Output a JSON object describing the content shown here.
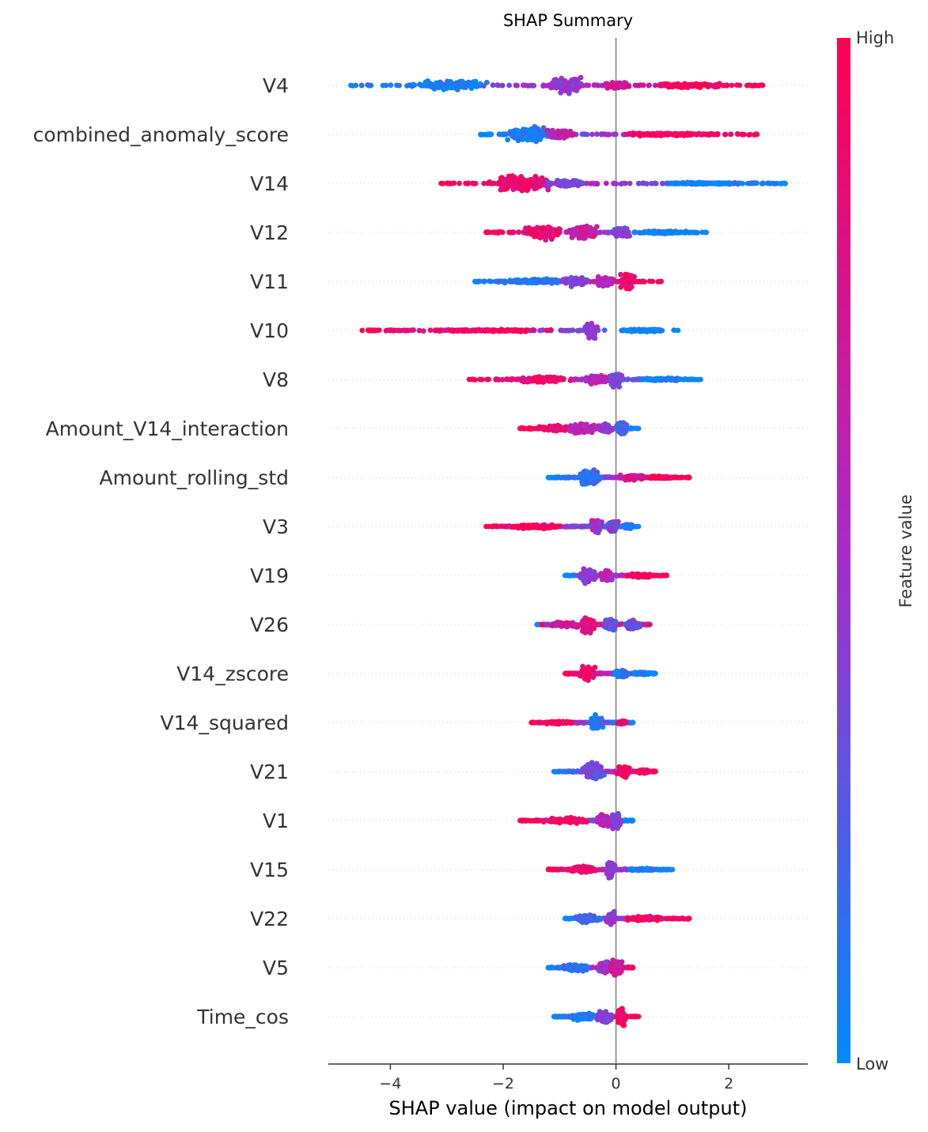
{
  "chart_data": {
    "type": "scatter",
    "subtype": "shap-beeswarm",
    "title": "SHAP Summary",
    "xlabel": "SHAP value (impact on model output)",
    "ylabel": "",
    "xlim": [
      -5.1,
      3.4
    ],
    "xticks": [
      -4,
      -2,
      0,
      2
    ],
    "xtick_labels": [
      "−4",
      "−2",
      "0",
      "2"
    ],
    "zero_line": 0,
    "colorbar": {
      "label": "Feature value",
      "high_label": "High",
      "low_label": "Low",
      "low_color": "#008afb",
      "high_color": "#ff0052"
    },
    "features": [
      {
        "name": "V4",
        "min": -4.7,
        "max": 2.6,
        "mode": "neg_low",
        "clusters": [
          {
            "x": -2.9,
            "w": 0.8,
            "h": 0.25,
            "f": 0.05
          },
          {
            "x": -0.9,
            "w": 0.4,
            "h": 0.45,
            "f": 0.45
          },
          {
            "x": 0.0,
            "w": 0.3,
            "h": 0.2,
            "f": 0.75
          },
          {
            "x": 1.3,
            "w": 0.9,
            "h": 0.12,
            "f": 0.95
          }
        ]
      },
      {
        "name": "combined_anomaly_score",
        "min": -2.4,
        "max": 2.5,
        "mode": "neg_low",
        "clusters": [
          {
            "x": -1.5,
            "w": 0.5,
            "h": 0.4,
            "f": 0.08
          },
          {
            "x": -1.0,
            "w": 0.3,
            "h": 0.25,
            "f": 0.6
          },
          {
            "x": 1.0,
            "w": 1.1,
            "h": 0.08,
            "f": 0.97
          }
        ]
      },
      {
        "name": "V14",
        "min": -3.1,
        "max": 3.0,
        "mode": "neg_high",
        "clusters": [
          {
            "x": -1.7,
            "w": 0.6,
            "h": 0.45,
            "f": 0.9
          },
          {
            "x": -0.9,
            "w": 0.4,
            "h": 0.2,
            "f": 0.4
          },
          {
            "x": 1.6,
            "w": 1.0,
            "h": 0.06,
            "f": 0.05
          }
        ]
      },
      {
        "name": "V12",
        "min": -2.3,
        "max": 1.6,
        "mode": "neg_high",
        "clusters": [
          {
            "x": -1.3,
            "w": 0.4,
            "h": 0.4,
            "f": 0.9
          },
          {
            "x": -0.6,
            "w": 0.3,
            "h": 0.35,
            "f": 0.65
          },
          {
            "x": 0.1,
            "w": 0.2,
            "h": 0.3,
            "f": 0.35
          },
          {
            "x": 0.8,
            "w": 0.5,
            "h": 0.08,
            "f": 0.05
          }
        ]
      },
      {
        "name": "V11",
        "min": -2.5,
        "max": 0.8,
        "mode": "neg_low",
        "clusters": [
          {
            "x": -1.4,
            "w": 0.7,
            "h": 0.15,
            "f": 0.1
          },
          {
            "x": -0.7,
            "w": 0.3,
            "h": 0.25,
            "f": 0.4
          },
          {
            "x": -0.2,
            "w": 0.2,
            "h": 0.3,
            "f": 0.6
          },
          {
            "x": 0.2,
            "w": 0.15,
            "h": 0.45,
            "f": 0.92
          }
        ]
      },
      {
        "name": "V10",
        "min": -4.5,
        "max": 1.1,
        "mode": "neg_high",
        "clusters": [
          {
            "x": -2.2,
            "w": 1.4,
            "h": 0.06,
            "f": 0.95
          },
          {
            "x": -0.45,
            "w": 0.15,
            "h": 0.4,
            "f": 0.45
          },
          {
            "x": 0.5,
            "w": 0.4,
            "h": 0.07,
            "f": 0.05
          }
        ]
      },
      {
        "name": "V8",
        "min": -2.6,
        "max": 1.5,
        "mode": "neg_high",
        "clusters": [
          {
            "x": -1.3,
            "w": 0.6,
            "h": 0.18,
            "f": 0.9
          },
          {
            "x": -0.3,
            "w": 0.3,
            "h": 0.25,
            "f": 0.6
          },
          {
            "x": 0.0,
            "w": 0.15,
            "h": 0.4,
            "f": 0.35
          },
          {
            "x": 0.8,
            "w": 0.5,
            "h": 0.08,
            "f": 0.05
          }
        ]
      },
      {
        "name": "Amount_V14_interaction",
        "min": -1.7,
        "max": 0.4,
        "mode": "neg_high",
        "clusters": [
          {
            "x": -1.1,
            "w": 0.35,
            "h": 0.15,
            "f": 0.9
          },
          {
            "x": -0.6,
            "w": 0.3,
            "h": 0.3,
            "f": 0.6
          },
          {
            "x": -0.2,
            "w": 0.15,
            "h": 0.25,
            "f": 0.45
          },
          {
            "x": 0.1,
            "w": 0.1,
            "h": 0.4,
            "f": 0.2
          }
        ]
      },
      {
        "name": "Amount_rolling_std",
        "min": -1.2,
        "max": 1.3,
        "mode": "neg_low",
        "clusters": [
          {
            "x": -0.45,
            "w": 0.25,
            "h": 0.45,
            "f": 0.15
          },
          {
            "x": 0.3,
            "w": 0.3,
            "h": 0.15,
            "f": 0.75
          },
          {
            "x": 0.8,
            "w": 0.3,
            "h": 0.07,
            "f": 0.97
          }
        ]
      },
      {
        "name": "V3",
        "min": -2.3,
        "max": 0.4,
        "mode": "neg_high",
        "clusters": [
          {
            "x": -1.4,
            "w": 0.6,
            "h": 0.12,
            "f": 0.97
          },
          {
            "x": -0.35,
            "w": 0.12,
            "h": 0.35,
            "f": 0.5
          },
          {
            "x": -0.05,
            "w": 0.1,
            "h": 0.4,
            "f": 0.35
          },
          {
            "x": 0.2,
            "w": 0.1,
            "h": 0.12,
            "f": 0.15
          }
        ]
      },
      {
        "name": "V19",
        "min": -0.9,
        "max": 0.9,
        "mode": "neg_low",
        "clusters": [
          {
            "x": -0.5,
            "w": 0.2,
            "h": 0.4,
            "f": 0.4
          },
          {
            "x": -0.15,
            "w": 0.15,
            "h": 0.3,
            "f": 0.6
          },
          {
            "x": 0.4,
            "w": 0.3,
            "h": 0.12,
            "f": 0.95
          }
        ]
      },
      {
        "name": "V26",
        "min": -1.4,
        "max": 0.6,
        "mode": "mixed",
        "clusters": [
          {
            "x": -0.9,
            "w": 0.3,
            "h": 0.15,
            "f": 0.75
          },
          {
            "x": -0.5,
            "w": 0.15,
            "h": 0.45,
            "f": 0.8
          },
          {
            "x": -0.1,
            "w": 0.15,
            "h": 0.35,
            "f": 0.3
          },
          {
            "x": 0.3,
            "w": 0.15,
            "h": 0.3,
            "f": 0.35
          }
        ]
      },
      {
        "name": "V14_zscore",
        "min": -0.9,
        "max": 0.7,
        "mode": "neg_high",
        "clusters": [
          {
            "x": -0.5,
            "w": 0.18,
            "h": 0.45,
            "f": 0.9
          },
          {
            "x": 0.1,
            "w": 0.15,
            "h": 0.2,
            "f": 0.1
          },
          {
            "x": 0.45,
            "w": 0.2,
            "h": 0.08,
            "f": 0.05
          }
        ]
      },
      {
        "name": "V14_squared",
        "min": -1.5,
        "max": 0.3,
        "mode": "neg_high",
        "clusters": [
          {
            "x": -1.0,
            "w": 0.3,
            "h": 0.08,
            "f": 0.95
          },
          {
            "x": -0.35,
            "w": 0.15,
            "h": 0.4,
            "f": 0.08
          },
          {
            "x": 0.1,
            "w": 0.1,
            "h": 0.08,
            "f": 0.9
          }
        ]
      },
      {
        "name": "V21",
        "min": -1.1,
        "max": 0.7,
        "mode": "neg_low",
        "clusters": [
          {
            "x": -0.4,
            "w": 0.25,
            "h": 0.45,
            "f": 0.3
          },
          {
            "x": 0.15,
            "w": 0.15,
            "h": 0.35,
            "f": 0.92
          },
          {
            "x": 0.5,
            "w": 0.15,
            "h": 0.1,
            "f": 0.95
          }
        ]
      },
      {
        "name": "V1",
        "min": -1.7,
        "max": 0.3,
        "mode": "neg_high",
        "clusters": [
          {
            "x": -0.9,
            "w": 0.5,
            "h": 0.15,
            "f": 0.95
          },
          {
            "x": -0.2,
            "w": 0.15,
            "h": 0.3,
            "f": 0.6
          },
          {
            "x": 0.0,
            "w": 0.12,
            "h": 0.45,
            "f": 0.4
          }
        ]
      },
      {
        "name": "V15",
        "min": -1.2,
        "max": 1.0,
        "mode": "neg_high",
        "clusters": [
          {
            "x": -0.6,
            "w": 0.3,
            "h": 0.2,
            "f": 0.9
          },
          {
            "x": -0.1,
            "w": 0.1,
            "h": 0.5,
            "f": 0.4
          },
          {
            "x": 0.5,
            "w": 0.3,
            "h": 0.07,
            "f": 0.05
          }
        ]
      },
      {
        "name": "V22",
        "min": -0.9,
        "max": 1.3,
        "mode": "neg_low",
        "clusters": [
          {
            "x": -0.5,
            "w": 0.25,
            "h": 0.25,
            "f": 0.15
          },
          {
            "x": -0.1,
            "w": 0.1,
            "h": 0.45,
            "f": 0.45
          },
          {
            "x": 0.5,
            "w": 0.4,
            "h": 0.12,
            "f": 0.95
          }
        ]
      },
      {
        "name": "V5",
        "min": -1.2,
        "max": 0.3,
        "mode": "neg_low",
        "clusters": [
          {
            "x": -0.7,
            "w": 0.3,
            "h": 0.2,
            "f": 0.1
          },
          {
            "x": -0.2,
            "w": 0.15,
            "h": 0.35,
            "f": 0.5
          },
          {
            "x": 0.0,
            "w": 0.12,
            "h": 0.45,
            "f": 0.7
          }
        ]
      },
      {
        "name": "Time_cos",
        "min": -1.1,
        "max": 0.4,
        "mode": "neg_low",
        "clusters": [
          {
            "x": -0.6,
            "w": 0.3,
            "h": 0.2,
            "f": 0.1
          },
          {
            "x": -0.2,
            "w": 0.15,
            "h": 0.35,
            "f": 0.4
          },
          {
            "x": 0.1,
            "w": 0.1,
            "h": 0.5,
            "f": 0.92
          }
        ]
      }
    ]
  }
}
